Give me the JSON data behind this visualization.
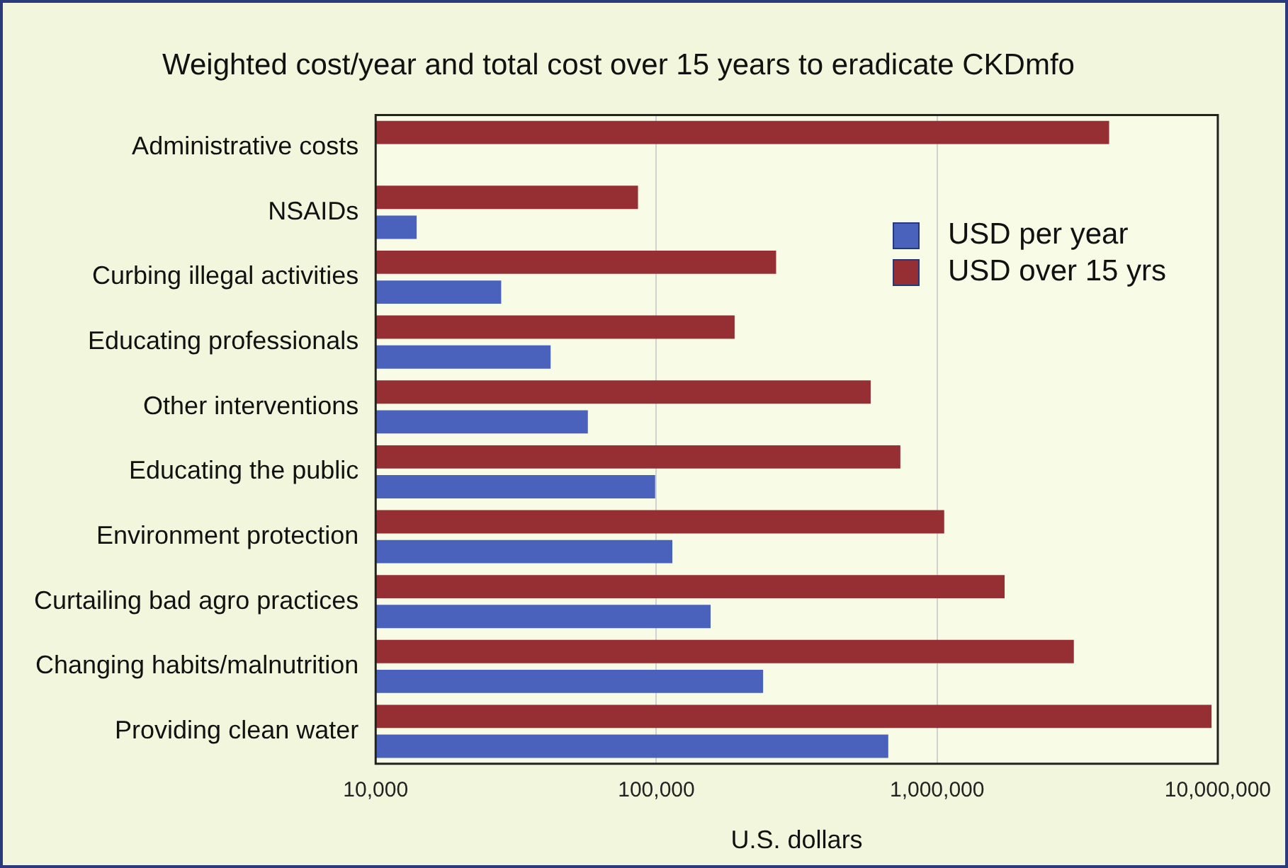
{
  "chart_data": {
    "type": "bar",
    "orientation": "horizontal",
    "title": "Weighted cost/year and total cost over 15 years to eradicate CKDmfo",
    "xlabel": "U.S. dollars",
    "categories": [
      "Administrative costs",
      "NSAIDs",
      "Curbing illegal activities",
      "Educating professionals",
      "Other interventions",
      "Educating the public",
      "Environment protection",
      "Curtailing bad agro practices",
      "Changing habits/malnutrition",
      "Providing clean water"
    ],
    "series": [
      {
        "name": "USD per year",
        "color": "#4a62bb",
        "values": [
          null,
          14000,
          28000,
          42000,
          57000,
          99000,
          114000,
          156000,
          240000,
          670000
        ]
      },
      {
        "name": "USD over 15 yrs",
        "color": "#962f33",
        "values": [
          4100000,
          86000,
          267000,
          190000,
          580000,
          740000,
          1060000,
          1740000,
          3070000,
          9500000
        ]
      }
    ],
    "log": "x",
    "xlim": [
      10000,
      10000000
    ],
    "xticks": [
      {
        "value": 10000,
        "label": "10,000"
      },
      {
        "value": 100000,
        "label": "100,000"
      },
      {
        "value": 1000000,
        "label": "1,000,000"
      },
      {
        "value": 10000000,
        "label": "10,000,000"
      }
    ],
    "grid": "x",
    "legend": "top right"
  }
}
